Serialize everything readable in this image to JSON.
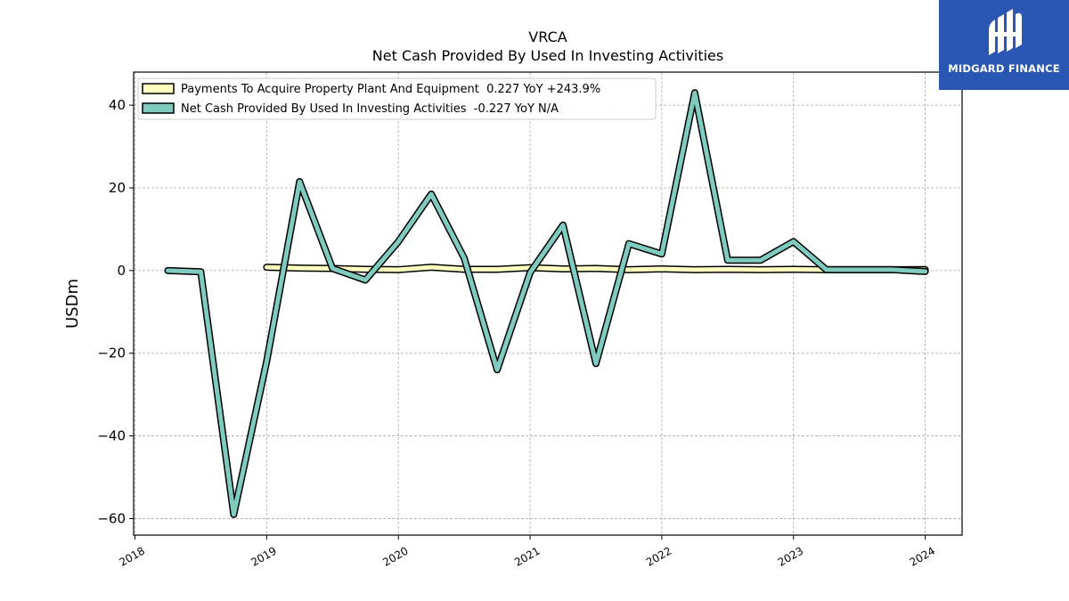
{
  "chart_data": {
    "type": "line",
    "title": "VRCA",
    "subtitle": "Net Cash Provided By Used In Investing Activities",
    "ylabel": "USDm",
    "xlabel": "",
    "ylim": [
      -64,
      48
    ],
    "xlim": [
      2017.99,
      2024.28
    ],
    "yticks": [
      40,
      20,
      0,
      -20,
      -40,
      -60
    ],
    "ytick_labels": [
      "40",
      "20",
      "0",
      "−20",
      "−40",
      "−60"
    ],
    "xticks": [
      2018,
      2019,
      2020,
      2021,
      2022,
      2023,
      2024
    ],
    "xtick_labels": [
      "2018",
      "2019",
      "2020",
      "2021",
      "2022",
      "2023",
      "2024"
    ],
    "grid": true,
    "legend_position": "top-left",
    "series": [
      {
        "name": "Payments To Acquire Property Plant And Equipment  0.227 YoY +243.9%",
        "color": "#ffffbf",
        "x": [
          2019.0,
          2019.25,
          2019.5,
          2019.75,
          2020.0,
          2020.25,
          2020.5,
          2020.75,
          2021.0,
          2021.25,
          2021.5,
          2021.75,
          2022.0,
          2022.25,
          2022.5,
          2022.75,
          2023.0,
          2023.25,
          2023.5,
          2023.75,
          2024.0
        ],
        "values": [
          0.8,
          0.6,
          0.5,
          0.3,
          0.2,
          0.8,
          0.3,
          0.3,
          0.7,
          0.4,
          0.5,
          0.2,
          0.4,
          0.2,
          0.3,
          0.2,
          0.3,
          0.2,
          0.2,
          0.2,
          0.227
        ]
      },
      {
        "name": "Net Cash Provided By Used In Investing Activities  -0.227 YoY N/A",
        "color": "#80cbc0",
        "x": [
          2018.25,
          2018.5,
          2018.75,
          2019.0,
          2019.25,
          2019.5,
          2019.75,
          2020.0,
          2020.25,
          2020.5,
          2020.75,
          2021.0,
          2021.25,
          2021.5,
          2021.75,
          2022.0,
          2022.25,
          2022.5,
          2022.75,
          2023.0,
          2023.25,
          2023.5,
          2023.75,
          2024.0
        ],
        "values": [
          0.0,
          -0.3,
          -59.0,
          -22.0,
          21.5,
          0.5,
          -2.3,
          7.0,
          18.5,
          3.0,
          -24.0,
          -0.5,
          11.0,
          -22.5,
          6.5,
          4.0,
          43.0,
          2.5,
          2.5,
          7.0,
          0.2,
          0.2,
          0.2,
          -0.227
        ]
      }
    ]
  },
  "logo": {
    "text": "MIDGARD FINANCE",
    "color": "#2a57b4"
  }
}
